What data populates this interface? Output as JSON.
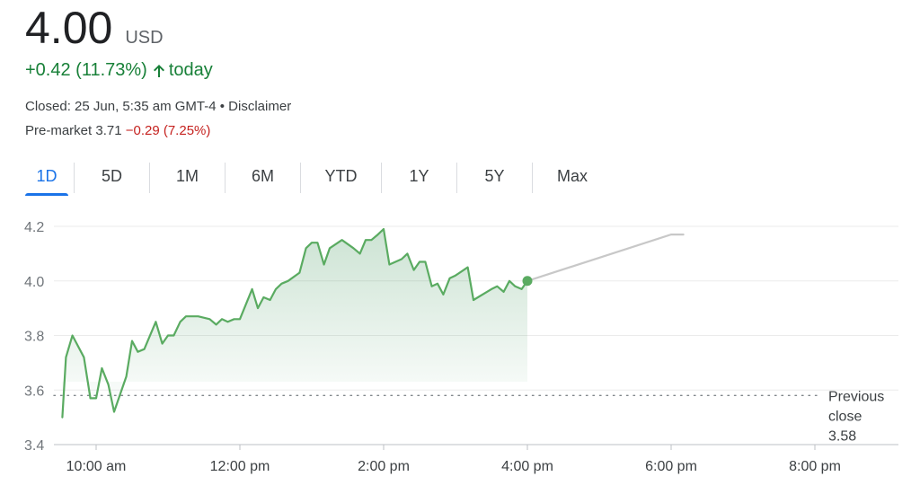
{
  "quote": {
    "price": "4.00",
    "currency": "USD",
    "change": "+0.42 (11.73%)",
    "change_suffix": "today",
    "closed_text": "Closed: 25 Jun, 5:35 am GMT-4 • Disclaimer",
    "premarket_label": "Pre-market 3.71",
    "premarket_change": "−0.29 (7.25%)"
  },
  "colors": {
    "up": "#188038",
    "down": "#c5221f",
    "line": "#5aab61",
    "extended_line": "#c8c8c8",
    "active_tab": "#1a73e8"
  },
  "tabs": [
    {
      "label": "1D",
      "active": true
    },
    {
      "label": "5D",
      "active": false
    },
    {
      "label": "1M",
      "active": false
    },
    {
      "label": "6M",
      "active": false
    },
    {
      "label": "YTD",
      "active": false
    },
    {
      "label": "1Y",
      "active": false
    },
    {
      "label": "5Y",
      "active": false
    },
    {
      "label": "Max",
      "active": false
    }
  ],
  "chart_data": {
    "type": "line",
    "title": "",
    "xlabel": "",
    "ylabel": "",
    "ylim": [
      3.4,
      4.2
    ],
    "xlim_hours": [
      9.5,
      20.0
    ],
    "grid": true,
    "y_ticks": [
      "4.2",
      "4.0",
      "3.8",
      "3.6",
      "3.4"
    ],
    "x_ticks": [
      {
        "label": "10:00 am",
        "hour": 10
      },
      {
        "label": "12:00 pm",
        "hour": 12
      },
      {
        "label": "2:00 pm",
        "hour": 14
      },
      {
        "label": "4:00 pm",
        "hour": 16
      },
      {
        "label": "6:00 pm",
        "hour": 18
      },
      {
        "label": "8:00 pm",
        "hour": 20
      }
    ],
    "previous_close": {
      "value": 3.58,
      "label_lines": [
        "Previous",
        "close",
        "3.58"
      ]
    },
    "series": [
      {
        "points": [
          [
            9.53,
            3.5
          ],
          [
            9.58,
            3.72
          ],
          [
            9.67,
            3.8
          ],
          [
            9.83,
            3.72
          ],
          [
            9.92,
            3.57
          ],
          [
            10.0,
            3.57
          ],
          [
            10.08,
            3.68
          ],
          [
            10.17,
            3.62
          ],
          [
            10.25,
            3.52
          ],
          [
            10.42,
            3.65
          ],
          [
            10.5,
            3.78
          ],
          [
            10.58,
            3.74
          ],
          [
            10.67,
            3.75
          ],
          [
            10.83,
            3.85
          ],
          [
            10.92,
            3.77
          ],
          [
            11.0,
            3.8
          ],
          [
            11.08,
            3.8
          ],
          [
            11.17,
            3.85
          ],
          [
            11.25,
            3.87
          ],
          [
            11.42,
            3.87
          ],
          [
            11.58,
            3.86
          ],
          [
            11.67,
            3.84
          ],
          [
            11.75,
            3.86
          ],
          [
            11.83,
            3.85
          ],
          [
            11.92,
            3.86
          ],
          [
            12.0,
            3.86
          ],
          [
            12.17,
            3.97
          ],
          [
            12.25,
            3.9
          ],
          [
            12.33,
            3.94
          ],
          [
            12.42,
            3.93
          ],
          [
            12.5,
            3.97
          ],
          [
            12.58,
            3.99
          ],
          [
            12.67,
            4.0
          ],
          [
            12.83,
            4.03
          ],
          [
            12.92,
            4.12
          ],
          [
            13.0,
            4.14
          ],
          [
            13.08,
            4.14
          ],
          [
            13.17,
            4.06
          ],
          [
            13.25,
            4.12
          ],
          [
            13.42,
            4.15
          ],
          [
            13.58,
            4.12
          ],
          [
            13.67,
            4.1
          ],
          [
            13.75,
            4.15
          ],
          [
            13.83,
            4.15
          ],
          [
            13.92,
            4.17
          ],
          [
            14.0,
            4.19
          ],
          [
            14.08,
            4.06
          ],
          [
            14.25,
            4.08
          ],
          [
            14.33,
            4.1
          ],
          [
            14.42,
            4.04
          ],
          [
            14.5,
            4.07
          ],
          [
            14.58,
            4.07
          ],
          [
            14.67,
            3.98
          ],
          [
            14.75,
            3.99
          ],
          [
            14.83,
            3.95
          ],
          [
            14.92,
            4.01
          ],
          [
            15.0,
            4.02
          ],
          [
            15.17,
            4.05
          ],
          [
            15.25,
            3.93
          ],
          [
            15.5,
            3.97
          ],
          [
            15.58,
            3.98
          ],
          [
            15.67,
            3.96
          ],
          [
            15.75,
            4.0
          ],
          [
            15.83,
            3.98
          ],
          [
            15.92,
            3.97
          ],
          [
            16.0,
            4.0
          ]
        ]
      }
    ],
    "extended_series": {
      "points": [
        [
          16.0,
          4.0
        ],
        [
          18.0,
          4.17
        ],
        [
          18.17,
          4.17
        ]
      ]
    },
    "current_point": [
      16.0,
      4.0
    ]
  }
}
